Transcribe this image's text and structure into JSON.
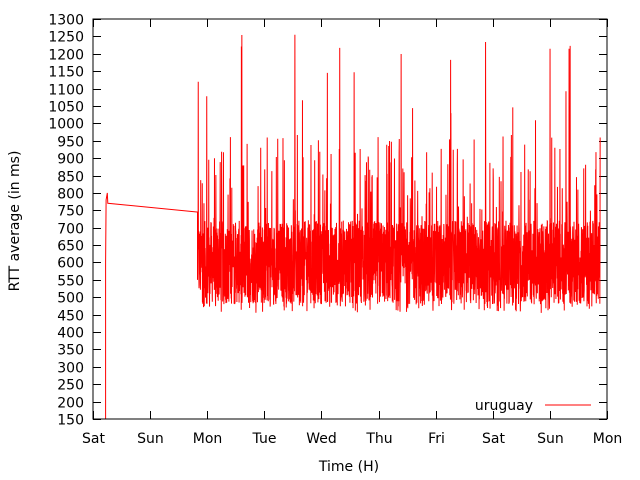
{
  "chart_data": {
    "type": "line",
    "title": "",
    "xlabel": "Time (H)",
    "ylabel": "RTT average (in ms)",
    "ylim": [
      150,
      1300
    ],
    "yticks": [
      150,
      200,
      250,
      300,
      350,
      400,
      450,
      500,
      550,
      600,
      650,
      700,
      750,
      800,
      850,
      900,
      950,
      1000,
      1050,
      1100,
      1150,
      1200,
      1250,
      1300
    ],
    "xlim_days": [
      0,
      9
    ],
    "xtick_labels": [
      "Sat",
      "Sun",
      "Mon",
      "Tue",
      "Wed",
      "Thu",
      "Fri",
      "Sat",
      "Sun",
      "Mon"
    ],
    "legend_position": "bottom-right",
    "grid": false,
    "series": [
      {
        "name": "uruguay",
        "color": "#ff0000",
        "baseline_ms": [
          480,
          720
        ],
        "spike_max_ms": 1270,
        "x_days": [
          0.22,
          0.22,
          0.23,
          0.24,
          0.25,
          0.26,
          1.82,
          1.83,
          1.83,
          1.84
        ],
        "y_ms": [
          150,
          600,
          780,
          790,
          800,
          770,
          745,
          745,
          550,
          720
        ]
      }
    ]
  }
}
